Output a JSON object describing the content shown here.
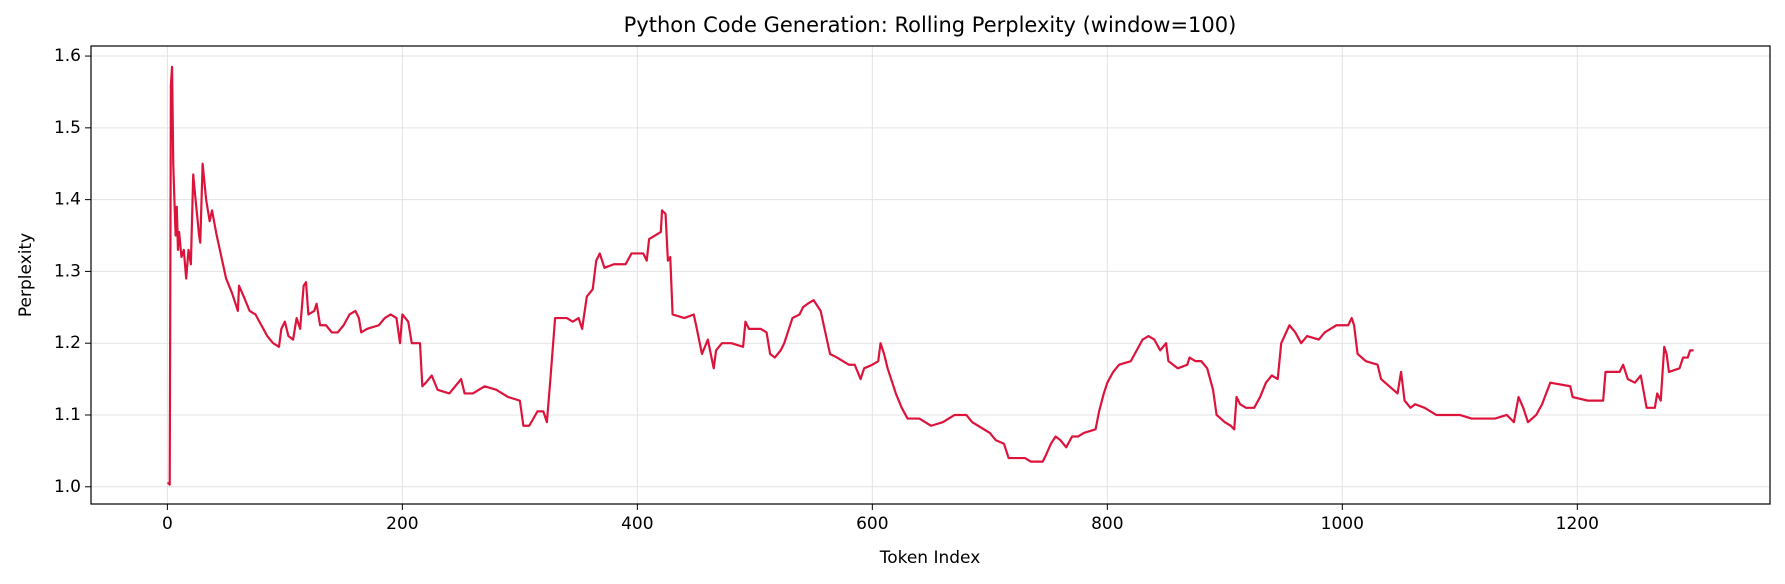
{
  "chart_data": {
    "type": "line",
    "title": "Python Code Generation: Rolling Perplexity (window=100)",
    "xlabel": "Token Index",
    "ylabel": "Perplexity",
    "color": "#dc143c",
    "grid": true,
    "xlim": [
      -65,
      1364
    ],
    "ylim": [
      0.976,
      1.614
    ],
    "xticks": [
      0,
      200,
      400,
      600,
      800,
      1000,
      1200
    ],
    "yticks": [
      {
        "value": 1,
        "label": "1.0"
      },
      1.1,
      1.2,
      1.3,
      1.4,
      1.5,
      1.6
    ],
    "x": [
      0,
      1,
      2,
      3,
      4,
      5,
      6,
      7,
      8,
      9,
      10,
      12,
      14,
      16,
      18,
      20,
      22,
      24,
      27,
      28,
      30,
      33,
      36,
      38,
      42,
      46,
      50,
      55,
      60,
      61,
      65,
      70,
      75,
      80,
      85,
      90,
      95,
      97,
      100,
      103,
      107,
      110,
      113,
      116,
      118,
      120,
      125,
      127,
      130,
      135,
      140,
      145,
      150,
      155,
      160,
      163,
      165,
      170,
      180,
      185,
      190,
      195,
      198,
      200,
      205,
      208,
      215,
      217,
      220,
      225,
      230,
      240,
      250,
      253,
      260,
      270,
      280,
      290,
      300,
      303,
      308,
      315,
      320,
      323,
      326,
      330,
      340,
      345,
      350,
      353,
      357,
      362,
      365,
      368,
      372,
      380,
      390,
      395,
      405,
      408,
      410,
      415,
      420,
      421,
      424,
      426,
      428,
      430,
      440,
      448,
      450,
      455,
      460,
      465,
      467,
      472,
      480,
      490,
      492,
      495,
      505,
      510,
      513,
      517,
      522,
      525,
      528,
      532,
      538,
      541,
      545,
      550,
      556,
      560,
      564,
      570,
      575,
      580,
      585,
      590,
      593,
      600,
      605,
      607,
      610,
      613,
      617,
      620,
      625,
      630,
      640,
      645,
      650,
      660,
      665,
      670,
      680,
      685,
      690,
      700,
      705,
      712,
      716,
      730,
      735,
      745,
      748,
      752,
      756,
      760,
      765,
      770,
      775,
      780,
      790,
      793,
      797,
      800,
      805,
      810,
      820,
      825,
      830,
      835,
      840,
      845,
      850,
      852,
      860,
      868,
      870,
      875,
      880,
      885,
      890,
      893,
      900,
      905,
      908,
      910,
      913,
      918,
      925,
      930,
      935,
      940,
      945,
      948,
      955,
      960,
      965,
      970,
      980,
      985,
      990,
      995,
      1005,
      1008,
      1010,
      1013,
      1020,
      1030,
      1033,
      1040,
      1047,
      1050,
      1053,
      1058,
      1062,
      1070,
      1080,
      1090,
      1100,
      1110,
      1120,
      1130,
      1140,
      1146,
      1150,
      1154,
      1158,
      1165,
      1170,
      1177,
      1194,
      1196,
      1209,
      1222,
      1224,
      1236,
      1239,
      1243,
      1249,
      1254,
      1259,
      1266,
      1268,
      1271,
      1274,
      1276,
      1278,
      1287,
      1290,
      1294,
      1296,
      1299
    ],
    "values": [
      1.005,
      1.005,
      1.003,
      1.56,
      1.585,
      1.45,
      1.4,
      1.35,
      1.39,
      1.33,
      1.355,
      1.32,
      1.33,
      1.29,
      1.33,
      1.31,
      1.435,
      1.4,
      1.35,
      1.34,
      1.45,
      1.4,
      1.37,
      1.385,
      1.35,
      1.32,
      1.29,
      1.27,
      1.245,
      1.28,
      1.265,
      1.245,
      1.24,
      1.225,
      1.21,
      1.2,
      1.195,
      1.22,
      1.23,
      1.21,
      1.205,
      1.235,
      1.22,
      1.28,
      1.285,
      1.24,
      1.245,
      1.255,
      1.225,
      1.225,
      1.215,
      1.215,
      1.225,
      1.24,
      1.245,
      1.235,
      1.215,
      1.22,
      1.225,
      1.235,
      1.24,
      1.235,
      1.2,
      1.24,
      1.23,
      1.2,
      1.2,
      1.14,
      1.145,
      1.155,
      1.135,
      1.13,
      1.15,
      1.13,
      1.13,
      1.14,
      1.135,
      1.125,
      1.12,
      1.085,
      1.085,
      1.105,
      1.105,
      1.09,
      1.15,
      1.235,
      1.235,
      1.23,
      1.235,
      1.22,
      1.265,
      1.275,
      1.315,
      1.325,
      1.305,
      1.31,
      1.31,
      1.325,
      1.325,
      1.315,
      1.345,
      1.35,
      1.355,
      1.385,
      1.38,
      1.315,
      1.32,
      1.24,
      1.235,
      1.24,
      1.225,
      1.185,
      1.205,
      1.165,
      1.19,
      1.2,
      1.2,
      1.195,
      1.23,
      1.22,
      1.22,
      1.215,
      1.185,
      1.18,
      1.19,
      1.2,
      1.215,
      1.235,
      1.24,
      1.25,
      1.255,
      1.26,
      1.245,
      1.215,
      1.185,
      1.18,
      1.175,
      1.17,
      1.17,
      1.15,
      1.165,
      1.17,
      1.175,
      1.2,
      1.185,
      1.165,
      1.145,
      1.13,
      1.11,
      1.095,
      1.095,
      1.09,
      1.085,
      1.09,
      1.095,
      1.1,
      1.1,
      1.09,
      1.085,
      1.075,
      1.065,
      1.06,
      1.04,
      1.04,
      1.035,
      1.035,
      1.045,
      1.06,
      1.07,
      1.065,
      1.055,
      1.07,
      1.07,
      1.075,
      1.08,
      1.105,
      1.13,
      1.145,
      1.16,
      1.17,
      1.175,
      1.19,
      1.205,
      1.21,
      1.205,
      1.19,
      1.2,
      1.175,
      1.165,
      1.17,
      1.18,
      1.175,
      1.175,
      1.165,
      1.135,
      1.1,
      1.09,
      1.085,
      1.08,
      1.125,
      1.115,
      1.11,
      1.11,
      1.125,
      1.145,
      1.155,
      1.15,
      1.2,
      1.225,
      1.215,
      1.2,
      1.21,
      1.205,
      1.215,
      1.22,
      1.225,
      1.225,
      1.235,
      1.225,
      1.185,
      1.175,
      1.17,
      1.15,
      1.14,
      1.13,
      1.16,
      1.12,
      1.11,
      1.115,
      1.11,
      1.1,
      1.1,
      1.1,
      1.095,
      1.095,
      1.095,
      1.1,
      1.09,
      1.125,
      1.11,
      1.09,
      1.1,
      1.115,
      1.145,
      1.14,
      1.125,
      1.12,
      1.12,
      1.16,
      1.16,
      1.17,
      1.15,
      1.145,
      1.155,
      1.11,
      1.11,
      1.13,
      1.12,
      1.195,
      1.185,
      1.16,
      1.165,
      1.18,
      1.18,
      1.19,
      1.19
    ]
  }
}
